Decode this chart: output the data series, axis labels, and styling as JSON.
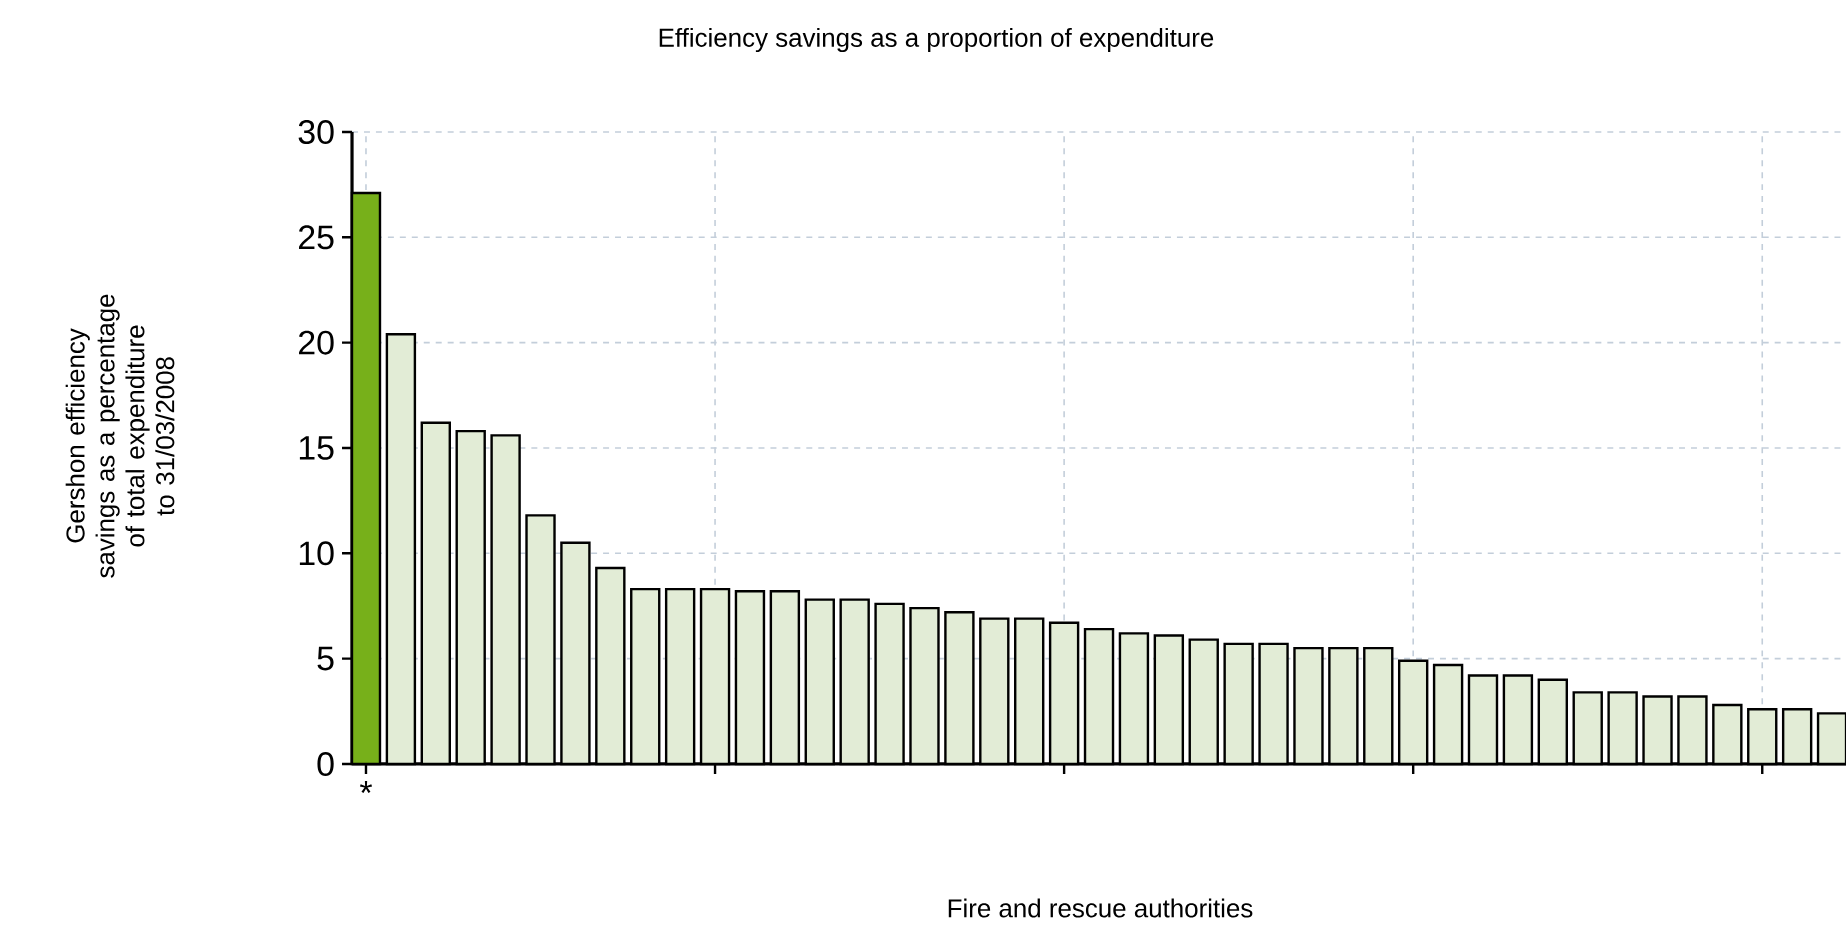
{
  "chart_data": {
    "type": "bar",
    "title": "Efficiency savings as a proportion of expenditure",
    "xlabel": "Fire and rescue authorities",
    "ylabel": "Gershon efficiency savings as a percentage of total expenditure to 31/03/2008",
    "categories": [
      "*",
      null,
      null,
      null,
      null,
      null,
      null,
      null,
      null,
      null,
      null,
      null,
      null,
      null,
      null,
      null,
      null,
      null,
      null,
      null,
      null,
      null,
      null,
      null,
      null,
      null,
      null,
      null,
      null,
      null,
      null,
      null,
      null,
      null,
      null,
      null,
      null,
      null,
      null,
      null,
      null,
      null,
      null
    ],
    "values": [
      27.1,
      20.4,
      16.2,
      15.8,
      15.6,
      11.8,
      10.5,
      9.3,
      8.3,
      8.3,
      8.3,
      8.2,
      8.2,
      7.8,
      7.8,
      7.6,
      7.4,
      7.2,
      6.9,
      6.9,
      6.7,
      6.4,
      6.2,
      6.1,
      5.9,
      5.7,
      5.7,
      5.5,
      5.5,
      5.5,
      4.9,
      4.7,
      4.2,
      4.2,
      4.0,
      3.4,
      3.4,
      3.2,
      3.2,
      2.8,
      2.6,
      2.6,
      2.4
    ],
    "colors": [
      "#77b01a",
      "#e2ecd6",
      "#e2ecd6",
      "#e2ecd6",
      "#e2ecd6",
      "#e2ecd6",
      "#e2ecd6",
      "#e2ecd6",
      "#e2ecd6",
      "#e2ecd6",
      "#e2ecd6",
      "#e2ecd6",
      "#e2ecd6",
      "#e2ecd6",
      "#e2ecd6",
      "#e2ecd6",
      "#e2ecd6",
      "#e2ecd6",
      "#e2ecd6",
      "#e2ecd6",
      "#e2ecd6",
      "#e2ecd6",
      "#e2ecd6",
      "#e2ecd6",
      "#e2ecd6",
      "#e2ecd6",
      "#e2ecd6",
      "#e2ecd6",
      "#e2ecd6",
      "#e2ecd6",
      "#e2ecd6",
      "#e2ecd6",
      "#e2ecd6",
      "#e2ecd6",
      "#e2ecd6",
      "#e2ecd6",
      "#e2ecd6",
      "#e2ecd6",
      "#e2ecd6",
      "#e2ecd6",
      "#e2ecd6",
      "#e2ecd6",
      "#e2ecd6"
    ],
    "ylim": [
      0,
      30
    ],
    "yticks": [
      0,
      5,
      10,
      15,
      20,
      25,
      30
    ],
    "grid": true
  }
}
